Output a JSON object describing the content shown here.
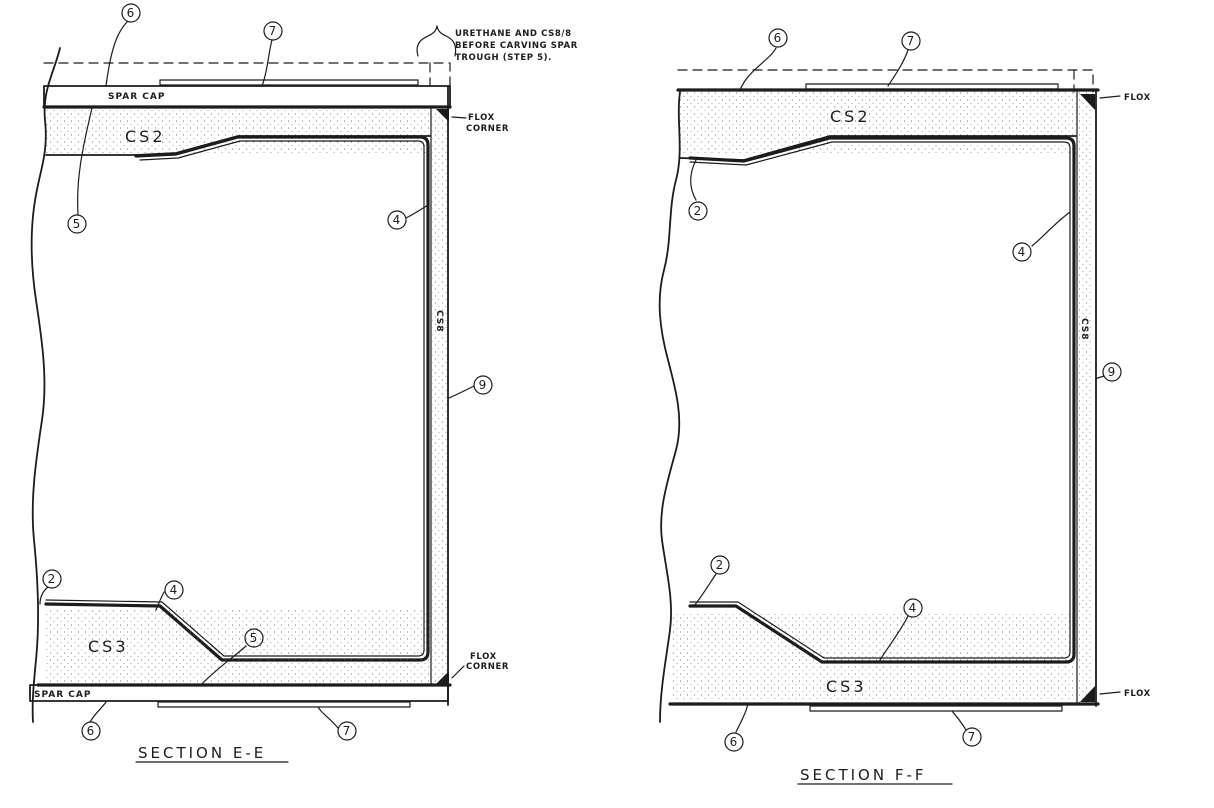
{
  "note": {
    "lines": [
      "URETHANE AND CS8/8",
      "BEFORE CARVING SPAR",
      "TROUGH (STEP 5)."
    ]
  },
  "left": {
    "spar_cap_top": "SPAR CAP",
    "spar_cap_bottom": "SPAR CAP",
    "cs2": "CS2",
    "cs3": "CS3",
    "cs8_vertical": "CS8",
    "flox_top": [
      "FLOX",
      "CORNER"
    ],
    "flox_bottom": [
      "FLOX",
      "CORNER"
    ],
    "title": "SECTION E-E",
    "bubbles": [
      "6",
      "7",
      "5",
      "4",
      "9",
      "2",
      "4",
      "5",
      "6",
      "7"
    ]
  },
  "right": {
    "cs2": "CS2",
    "cs3": "CS3",
    "cs8_vertical": "CS8",
    "flox_top": "FLOX",
    "flox_bottom": "FLOX",
    "title": "SECTION F-F",
    "bubbles": [
      "6",
      "7",
      "2",
      "4",
      "9",
      "2",
      "4",
      "6",
      "7"
    ]
  }
}
